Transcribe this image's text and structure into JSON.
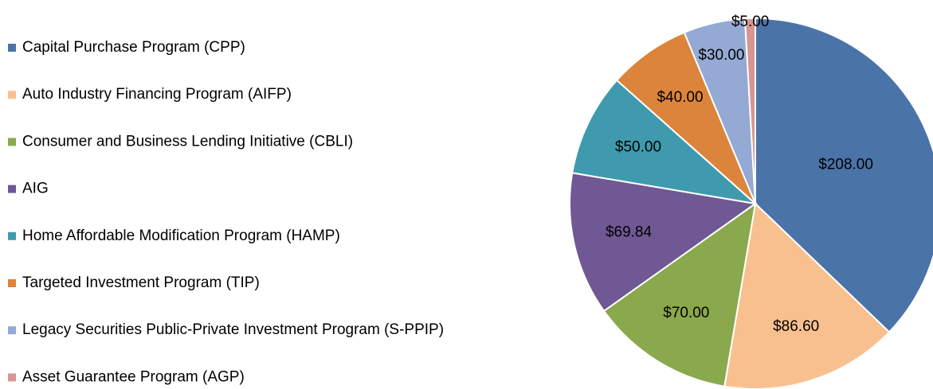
{
  "chart_data": {
    "type": "pie",
    "categories": [
      "Capital Purchase Program (CPP)",
      "Auto Industry Financing Program (AIFP)",
      "Consumer and Business Lending Initiative (CBLI)",
      "AIG",
      "Home Affordable Modification Program (HAMP)",
      "Targeted Investment Program (TIP)",
      "Legacy Securities Public-Private Investment Program (S-PPIP)",
      "Asset Guarantee Program (AGP)"
    ],
    "values": [
      208,
      86.6,
      70,
      69.84,
      50,
      40,
      30,
      5
    ],
    "value_labels": [
      "$208.00",
      "$86.60",
      "$70.00",
      "$69.84",
      "$50.00",
      "$40.00",
      "$30.00",
      "$5.00"
    ],
    "colors": [
      "#4a73a8",
      "#f9c08f",
      "#8aa84c",
      "#6f5893",
      "#3f9aae",
      "#dc843b",
      "#94a9d3",
      "#d99593"
    ],
    "legend": "left"
  }
}
